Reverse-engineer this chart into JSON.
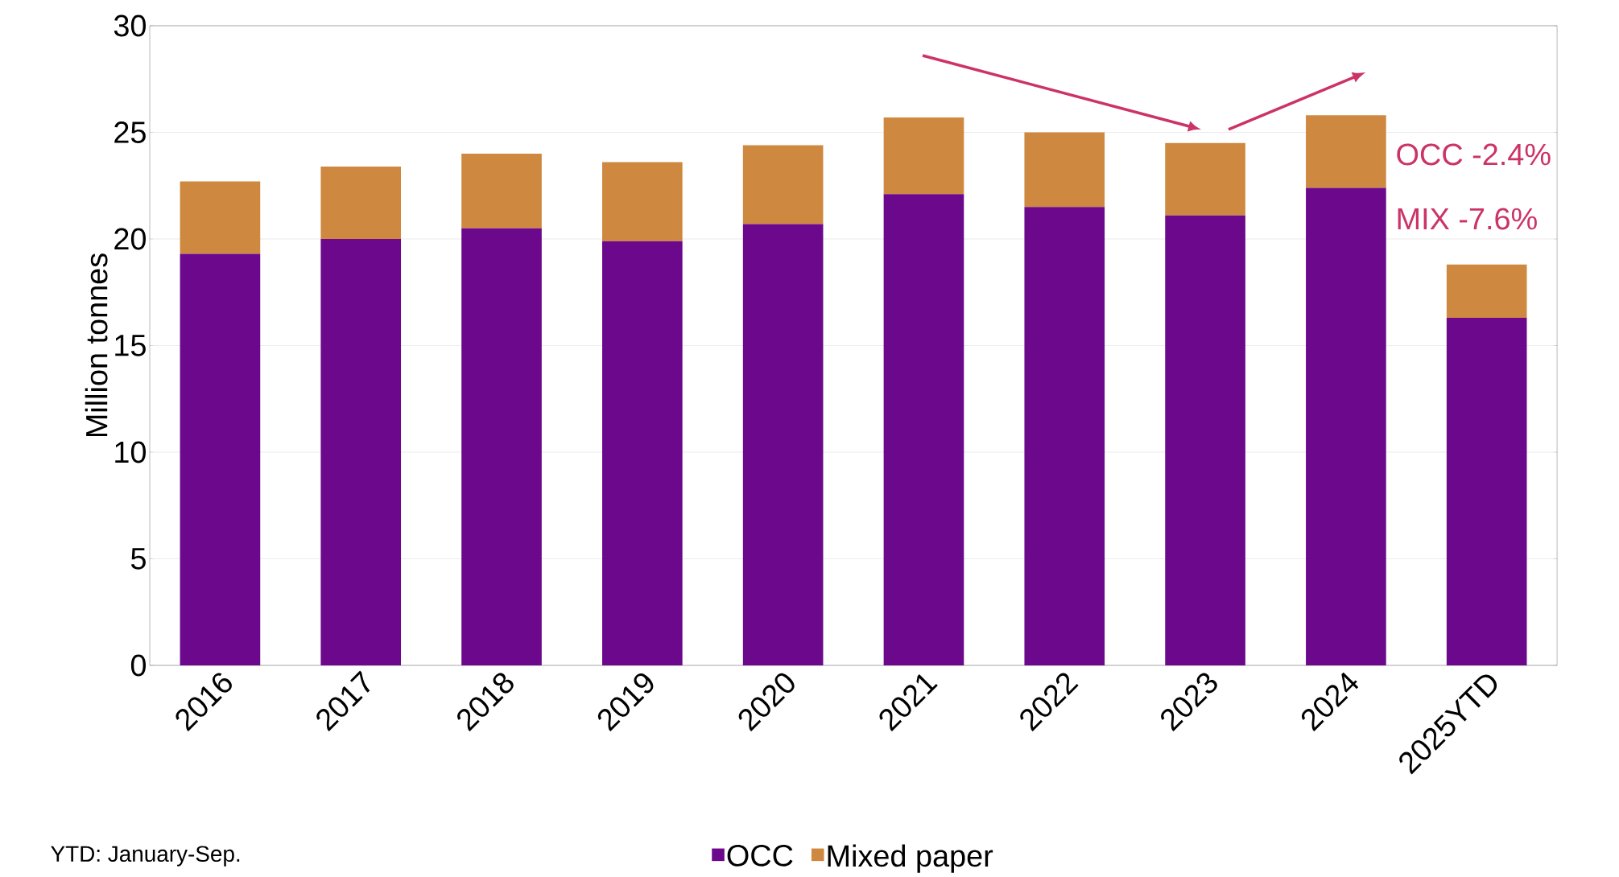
{
  "chart_data": {
    "type": "bar",
    "stacked": true,
    "categories": [
      "2016",
      "2017",
      "2018",
      "2019",
      "2020",
      "2021",
      "2022",
      "2023",
      "2024",
      "2025YTD"
    ],
    "ylabel": "Million tonnes",
    "series": [
      {
        "name": "OCC",
        "color": "#6b088c",
        "values": [
          19.3,
          20.0,
          20.5,
          19.9,
          20.7,
          22.1,
          21.5,
          21.1,
          22.4,
          16.3
        ]
      },
      {
        "name": "Mixed paper",
        "color": "#cf883f",
        "values": [
          3.4,
          3.4,
          3.5,
          3.7,
          3.7,
          3.6,
          3.5,
          3.4,
          3.4,
          2.5
        ]
      }
    ],
    "ylim": [
      0,
      30
    ],
    "yticks": [
      0,
      5,
      10,
      15,
      20,
      25,
      30
    ],
    "grid": "y",
    "legend": "bottom",
    "annotations": [
      "OCC -2.4%",
      "MIX -7.6%",
      "YTD: January-Sep."
    ]
  }
}
